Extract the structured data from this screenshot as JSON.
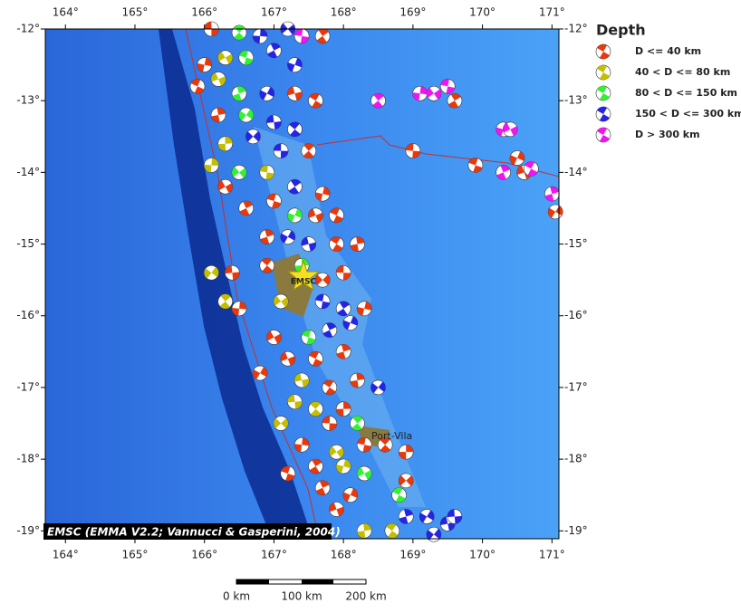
{
  "map": {
    "type": "map",
    "xlim": [
      163.71,
      171.1
    ],
    "ylim": [
      -19.11,
      -12
    ],
    "xticks": [
      {
        "value": 164,
        "label": "164°"
      },
      {
        "value": 165,
        "label": "165°"
      },
      {
        "value": 166,
        "label": "166°"
      },
      {
        "value": 167,
        "label": "167°"
      },
      {
        "value": 168,
        "label": "168°"
      },
      {
        "value": 169,
        "label": "169°"
      },
      {
        "value": 170,
        "label": "170°"
      },
      {
        "value": 171,
        "label": "171°"
      }
    ],
    "yticks": [
      {
        "value": -12,
        "label": "-12°"
      },
      {
        "value": -13,
        "label": "-13°"
      },
      {
        "value": -14,
        "label": "-14°"
      },
      {
        "value": -15,
        "label": "-15°"
      },
      {
        "value": -16,
        "label": "-16°"
      },
      {
        "value": -17,
        "label": "-17°"
      },
      {
        "value": -18,
        "label": "-18°"
      },
      {
        "value": -19,
        "label": "-19°"
      }
    ],
    "legend": {
      "title": "Depth",
      "entries": [
        {
          "name": "D <= 40 km",
          "color": "#e8380c"
        },
        {
          "name": "40 < D <= 80 km",
          "color": "#c4be00"
        },
        {
          "name": "80 < D <= 150 km",
          "color": "#34f034"
        },
        {
          "name": "150 < D <= 300 km",
          "color": "#2424e4"
        },
        {
          "name": "D > 300 km",
          "color": "#f014f0"
        }
      ]
    },
    "events": [
      [
        166.1,
        -12.0,
        0
      ],
      [
        166.5,
        -12.05,
        2
      ],
      [
        166.8,
        -12.1,
        3
      ],
      [
        167.2,
        -12.0,
        3
      ],
      [
        167.4,
        -12.1,
        4
      ],
      [
        167.7,
        -12.1,
        0
      ],
      [
        166.0,
        -12.5,
        0
      ],
      [
        166.3,
        -12.4,
        1
      ],
      [
        166.6,
        -12.4,
        2
      ],
      [
        167.0,
        -12.3,
        3
      ],
      [
        167.3,
        -12.5,
        3
      ],
      [
        166.2,
        -12.7,
        1
      ],
      [
        165.9,
        -12.8,
        0
      ],
      [
        166.5,
        -12.9,
        2
      ],
      [
        166.9,
        -12.9,
        3
      ],
      [
        167.3,
        -12.9,
        0
      ],
      [
        167.6,
        -13.0,
        0
      ],
      [
        166.2,
        -13.2,
        0
      ],
      [
        166.6,
        -13.2,
        2
      ],
      [
        167.0,
        -13.3,
        3
      ],
      [
        167.3,
        -13.4,
        3
      ],
      [
        166.3,
        -13.6,
        1
      ],
      [
        166.7,
        -13.5,
        3
      ],
      [
        167.1,
        -13.7,
        3
      ],
      [
        167.5,
        -13.7,
        0
      ],
      [
        166.1,
        -13.9,
        1
      ],
      [
        166.5,
        -14.0,
        2
      ],
      [
        166.9,
        -14.0,
        1
      ],
      [
        167.3,
        -14.2,
        3
      ],
      [
        167.7,
        -14.3,
        0
      ],
      [
        166.3,
        -14.2,
        0
      ],
      [
        167.0,
        -14.4,
        0
      ],
      [
        166.6,
        -14.5,
        0
      ],
      [
        167.3,
        -14.6,
        2
      ],
      [
        167.6,
        -14.6,
        0
      ],
      [
        167.9,
        -14.6,
        0
      ],
      [
        166.9,
        -14.9,
        0
      ],
      [
        167.2,
        -14.9,
        3
      ],
      [
        167.5,
        -15.0,
        3
      ],
      [
        167.9,
        -15.0,
        0
      ],
      [
        168.2,
        -15.0,
        0
      ],
      [
        166.1,
        -15.4,
        1
      ],
      [
        166.4,
        -15.4,
        0
      ],
      [
        166.9,
        -15.3,
        0
      ],
      [
        167.4,
        -15.3,
        2
      ],
      [
        167.7,
        -15.5,
        0
      ],
      [
        168.0,
        -15.4,
        0
      ],
      [
        166.3,
        -15.8,
        1
      ],
      [
        166.5,
        -15.9,
        0
      ],
      [
        167.1,
        -15.8,
        1
      ],
      [
        167.7,
        -15.8,
        3
      ],
      [
        168.0,
        -15.9,
        3
      ],
      [
        168.3,
        -15.9,
        0
      ],
      [
        167.0,
        -16.3,
        0
      ],
      [
        167.5,
        -16.3,
        2
      ],
      [
        167.8,
        -16.2,
        3
      ],
      [
        168.1,
        -16.1,
        3
      ],
      [
        167.2,
        -16.6,
        0
      ],
      [
        167.6,
        -16.6,
        0
      ],
      [
        168.0,
        -16.5,
        0
      ],
      [
        166.8,
        -16.8,
        0
      ],
      [
        167.4,
        -16.9,
        1
      ],
      [
        167.8,
        -17.0,
        0
      ],
      [
        168.2,
        -16.9,
        0
      ],
      [
        168.5,
        -17.0,
        3
      ],
      [
        167.3,
        -17.2,
        1
      ],
      [
        167.6,
        -17.3,
        1
      ],
      [
        168.0,
        -17.3,
        0
      ],
      [
        167.1,
        -17.5,
        1
      ],
      [
        167.8,
        -17.5,
        0
      ],
      [
        168.2,
        -17.5,
        2
      ],
      [
        167.4,
        -17.8,
        0
      ],
      [
        167.9,
        -17.9,
        1
      ],
      [
        168.3,
        -17.8,
        0
      ],
      [
        167.6,
        -18.1,
        0
      ],
      [
        168.0,
        -18.1,
        1
      ],
      [
        168.3,
        -18.2,
        2
      ],
      [
        167.2,
        -18.2,
        0
      ],
      [
        167.7,
        -18.4,
        0
      ],
      [
        168.1,
        -18.5,
        0
      ],
      [
        167.9,
        -18.7,
        0
      ],
      [
        168.8,
        -18.5,
        2
      ],
      [
        168.9,
        -18.8,
        3
      ],
      [
        169.2,
        -18.8,
        3
      ],
      [
        169.5,
        -18.9,
        3
      ],
      [
        168.7,
        -19.0,
        1
      ],
      [
        168.3,
        -19.0,
        1
      ],
      [
        169.3,
        -19.05,
        3
      ],
      [
        169.6,
        -18.8,
        3
      ],
      [
        168.6,
        -17.8,
        0
      ],
      [
        168.9,
        -17.9,
        0
      ],
      [
        168.9,
        -18.3,
        0
      ],
      [
        169.0,
        -13.7,
        0
      ],
      [
        168.5,
        -13.0,
        4
      ],
      [
        169.1,
        -12.9,
        4
      ],
      [
        169.3,
        -12.9,
        4
      ],
      [
        169.5,
        -12.8,
        4
      ],
      [
        169.6,
        -13.0,
        0
      ],
      [
        170.3,
        -13.4,
        4
      ],
      [
        170.4,
        -13.4,
        4
      ],
      [
        169.9,
        -13.9,
        0
      ],
      [
        170.3,
        -14.0,
        4
      ],
      [
        170.5,
        -13.8,
        0
      ],
      [
        170.6,
        -14.0,
        0
      ],
      [
        170.7,
        -13.95,
        4
      ],
      [
        171.0,
        -14.3,
        4
      ],
      [
        171.05,
        -14.55,
        0
      ]
    ],
    "star_label": "EMSC",
    "place_label": "Port-Vila",
    "attribution": "EMSC (EMMA V2.2; Vannucci & Gasperini, 2004)",
    "scale_labels": [
      "0 km",
      "100 km",
      "200 km"
    ]
  }
}
